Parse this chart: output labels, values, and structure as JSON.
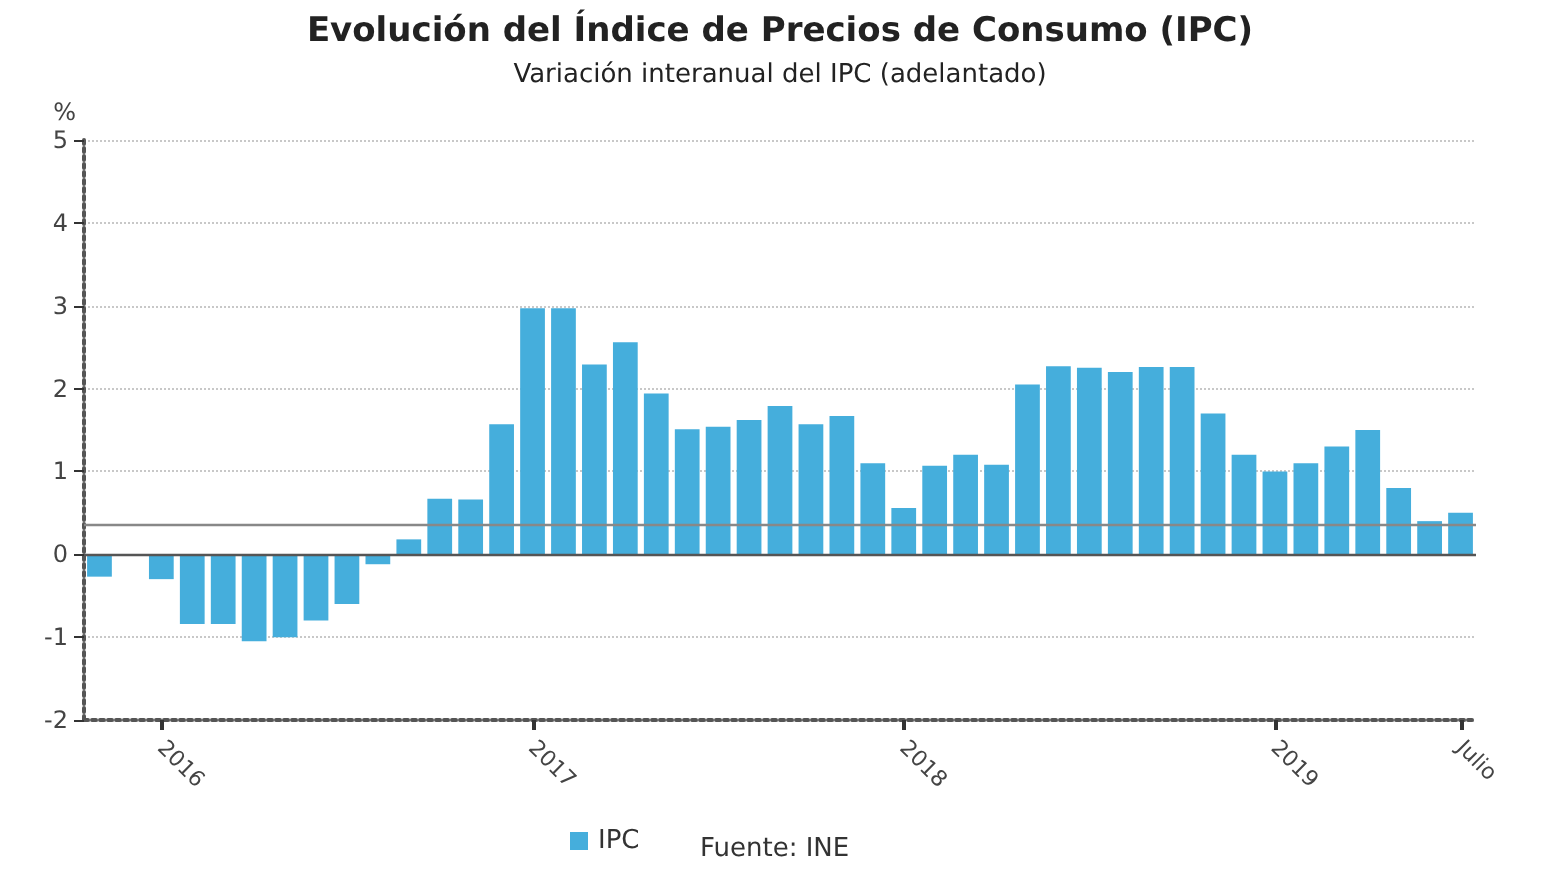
{
  "chart_data": {
    "type": "bar",
    "title": "Evolución del Índice de Precios de Consumo (IPC)",
    "subtitle": "Variación interanual del IPC (adelantado)",
    "ylabel": "%",
    "categories": [
      null,
      null,
      "2016",
      null,
      null,
      null,
      null,
      null,
      null,
      null,
      null,
      null,
      null,
      null,
      "2017",
      null,
      null,
      null,
      null,
      null,
      null,
      null,
      null,
      null,
      null,
      null,
      "2018",
      null,
      null,
      null,
      null,
      null,
      null,
      null,
      null,
      null,
      null,
      null,
      "2019",
      null,
      null,
      null,
      null,
      null,
      "Julio"
    ],
    "series": [
      {
        "name": "IPC",
        "color": "#45aedc",
        "values": [
          -0.27,
          0,
          -0.3,
          -0.84,
          -0.84,
          -1.05,
          -1.0,
          -0.8,
          -0.6,
          -0.12,
          0.18,
          0.67,
          0.66,
          1.57,
          2.97,
          2.97,
          2.29,
          2.56,
          1.94,
          1.51,
          1.54,
          1.62,
          1.79,
          1.57,
          1.67,
          1.1,
          0.56,
          1.07,
          1.2,
          1.08,
          2.05,
          2.27,
          2.25,
          2.2,
          2.26,
          2.26,
          1.7,
          1.2,
          1.0,
          1.1,
          1.3,
          1.5,
          0.8,
          0.4,
          0.5
        ]
      }
    ],
    "ylim": [
      -2,
      5
    ],
    "yticks": [
      -2,
      -1,
      0,
      1,
      2,
      3,
      4,
      5
    ],
    "grid": "y",
    "legend": "bottom",
    "ref_lines": [
      {
        "axis": "y",
        "value": 0.35,
        "color": "#888888"
      },
      {
        "axis": "y",
        "value": 0,
        "color": "#555555"
      }
    ],
    "annotations": [
      "Fuente: INE"
    ]
  }
}
